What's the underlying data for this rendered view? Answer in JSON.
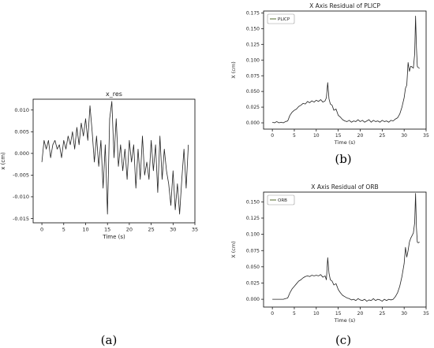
{
  "panel_labels": [
    "(a)",
    "(b)",
    "(c)"
  ],
  "chart_data": [
    {
      "type": "line",
      "title": "x_res",
      "xlabel": "Time (s)",
      "ylabel": "x (cm)",
      "xlim": [
        -2,
        35
      ],
      "ylim": [
        -0.016,
        0.0125
      ],
      "xticks": [
        0,
        5,
        10,
        15,
        20,
        25,
        30,
        35
      ],
      "yticks": [
        -0.015,
        -0.01,
        -0.005,
        0.0,
        0.005,
        0.01
      ],
      "ytick_labels": [
        "-0.015",
        "-0.010",
        "-0.005",
        "0.000",
        "0.005",
        "0.010"
      ],
      "grid": false,
      "series": [
        {
          "x": [
            0.0,
            0.5,
            1.0,
            1.5,
            2.0,
            2.5,
            3.0,
            3.5,
            4.0,
            4.5,
            5.0,
            5.5,
            6.0,
            6.5,
            7.0,
            7.5,
            8.0,
            8.5,
            9.0,
            9.5,
            10.0,
            10.5,
            11.0,
            11.5,
            12.0,
            12.5,
            13.0,
            13.5,
            14.0,
            14.5,
            15.0,
            15.5,
            16.0,
            16.5,
            17.0,
            17.5,
            18.0,
            18.5,
            19.0,
            19.5,
            20.0,
            20.5,
            21.0,
            21.5,
            22.0,
            22.5,
            23.0,
            23.5,
            24.0,
            24.5,
            25.0,
            25.5,
            26.0,
            26.5,
            27.0,
            27.5,
            28.0,
            28.5,
            29.0,
            29.5,
            30.0,
            30.5,
            31.0,
            31.5,
            32.0,
            32.5,
            33.0,
            33.5
          ],
          "values": [
            -0.002,
            0.003,
            0.001,
            0.003,
            -0.001,
            0.002,
            0.003,
            0.001,
            0.002,
            -0.001,
            0.003,
            0.001,
            0.004,
            0.002,
            0.005,
            0.001,
            0.006,
            0.002,
            0.007,
            0.004,
            0.008,
            0.003,
            0.011,
            0.005,
            -0.002,
            0.004,
            -0.003,
            0.003,
            -0.008,
            0.002,
            -0.014,
            0.008,
            0.012,
            -0.001,
            0.008,
            -0.003,
            0.002,
            -0.004,
            0.001,
            -0.006,
            0.003,
            -0.002,
            0.002,
            -0.008,
            0.001,
            -0.006,
            0.004,
            -0.005,
            -0.002,
            -0.006,
            0.003,
            -0.004,
            0.002,
            -0.009,
            0.004,
            -0.006,
            0.001,
            -0.004,
            -0.007,
            -0.012,
            -0.004,
            -0.013,
            -0.007,
            -0.014,
            -0.006,
            0.001,
            -0.008,
            0.002
          ]
        }
      ]
    },
    {
      "type": "line",
      "title": "X Axis Residual of PLICP",
      "xlabel": "Time (s)",
      "ylabel": "X (cm)",
      "xlim": [
        -2,
        35
      ],
      "ylim": [
        -0.01,
        0.178
      ],
      "xticks": [
        0,
        5,
        10,
        15,
        20,
        25,
        30,
        35
      ],
      "yticks": [
        0.0,
        0.025,
        0.05,
        0.075,
        0.1,
        0.125,
        0.15,
        0.175
      ],
      "ytick_labels": [
        "0.000",
        "0.025",
        "0.050",
        "0.075",
        "0.100",
        "0.125",
        "0.150",
        "0.175"
      ],
      "grid": false,
      "legend": "top-left",
      "series": [
        {
          "name": "PLICP",
          "x": [
            0,
            0.5,
            1,
            1.5,
            2,
            2.5,
            3,
            3.5,
            4,
            4.5,
            5,
            5.5,
            6,
            6.5,
            7,
            7.5,
            8,
            8.5,
            9,
            9.5,
            10,
            10.5,
            11,
            11.5,
            12,
            12.3,
            12.6,
            12.9,
            13.2,
            13.6,
            14,
            14.5,
            15,
            15.5,
            16,
            16.5,
            17,
            17.5,
            18,
            18.5,
            19,
            19.5,
            20,
            20.5,
            21,
            21.5,
            22,
            22.5,
            23,
            23.5,
            24,
            24.5,
            25,
            25.5,
            26,
            26.5,
            27,
            27.5,
            28,
            28.5,
            29,
            29.5,
            30,
            30.3,
            30.6,
            30.9,
            31.2,
            31.5,
            31.8,
            32.1,
            32.4,
            32.6,
            32.8,
            33,
            33.2,
            33.5
          ],
          "values": [
            0.001,
            0.0,
            0.002,
            0.0,
            0.001,
            0.0,
            0.002,
            0.003,
            0.012,
            0.017,
            0.02,
            0.022,
            0.026,
            0.028,
            0.031,
            0.03,
            0.034,
            0.032,
            0.035,
            0.033,
            0.036,
            0.034,
            0.037,
            0.033,
            0.035,
            0.04,
            0.064,
            0.038,
            0.03,
            0.028,
            0.02,
            0.022,
            0.012,
            0.009,
            0.005,
            0.003,
            0.002,
            0.004,
            0.001,
            0.003,
            0.002,
            0.005,
            0.002,
            0.004,
            0.001,
            0.003,
            0.005,
            0.001,
            0.004,
            0.002,
            0.003,
            0.001,
            0.004,
            0.002,
            0.003,
            0.001,
            0.004,
            0.003,
            0.006,
            0.008,
            0.014,
            0.025,
            0.04,
            0.055,
            0.06,
            0.096,
            0.082,
            0.09,
            0.089,
            0.087,
            0.11,
            0.17,
            0.12,
            0.09,
            0.088,
            0.087
          ]
        }
      ]
    },
    {
      "type": "line",
      "title": "X Axis Residual of ORB",
      "xlabel": "Time (s)",
      "ylabel": "X (cm)",
      "xlim": [
        -2,
        35
      ],
      "ylim": [
        -0.012,
        0.165
      ],
      "xticks": [
        0,
        5,
        10,
        15,
        20,
        25,
        30,
        35
      ],
      "yticks": [
        0.0,
        0.025,
        0.05,
        0.075,
        0.1,
        0.125,
        0.15
      ],
      "ytick_labels": [
        "0.000",
        "0.025",
        "0.050",
        "0.075",
        "0.100",
        "0.125",
        "0.150"
      ],
      "grid": false,
      "legend": "top-left",
      "series": [
        {
          "name": "ORB",
          "x": [
            0,
            0.5,
            1,
            1.5,
            2,
            2.5,
            3,
            3.5,
            4,
            4.5,
            5,
            5.5,
            6,
            6.5,
            7,
            7.5,
            8,
            8.5,
            9,
            9.5,
            10,
            10.5,
            11,
            11.5,
            12,
            12.3,
            12.6,
            12.9,
            13.2,
            13.6,
            14,
            14.5,
            15,
            15.5,
            16,
            16.5,
            17,
            17.5,
            18,
            18.5,
            19,
            19.5,
            20,
            20.5,
            21,
            21.5,
            22,
            22.5,
            23,
            23.5,
            24,
            24.5,
            25,
            25.5,
            26,
            26.5,
            27,
            27.5,
            28,
            28.5,
            29,
            29.5,
            30,
            30.3,
            30.6,
            30.9,
            31.2,
            31.5,
            31.8,
            32.1,
            32.4,
            32.6,
            32.8,
            33,
            33.2,
            33.5
          ],
          "values": [
            0.0,
            0.0,
            0.0,
            0.0,
            0.0,
            0.0,
            0.001,
            0.002,
            0.01,
            0.016,
            0.02,
            0.024,
            0.028,
            0.03,
            0.033,
            0.035,
            0.036,
            0.035,
            0.037,
            0.036,
            0.037,
            0.036,
            0.038,
            0.034,
            0.036,
            0.03,
            0.064,
            0.04,
            0.03,
            0.028,
            0.022,
            0.024,
            0.015,
            0.01,
            0.006,
            0.004,
            0.002,
            0.001,
            -0.001,
            0.0,
            -0.002,
            0.001,
            -0.001,
            -0.002,
            0.0,
            -0.003,
            -0.001,
            -0.002,
            0.001,
            -0.002,
            0.0,
            -0.001,
            -0.003,
            0.0,
            -0.002,
            0.0,
            -0.001,
            0.0,
            0.004,
            0.01,
            0.02,
            0.035,
            0.055,
            0.08,
            0.065,
            0.075,
            0.088,
            0.094,
            0.098,
            0.102,
            0.118,
            0.163,
            0.11,
            0.088,
            0.087,
            0.088
          ]
        }
      ]
    }
  ]
}
